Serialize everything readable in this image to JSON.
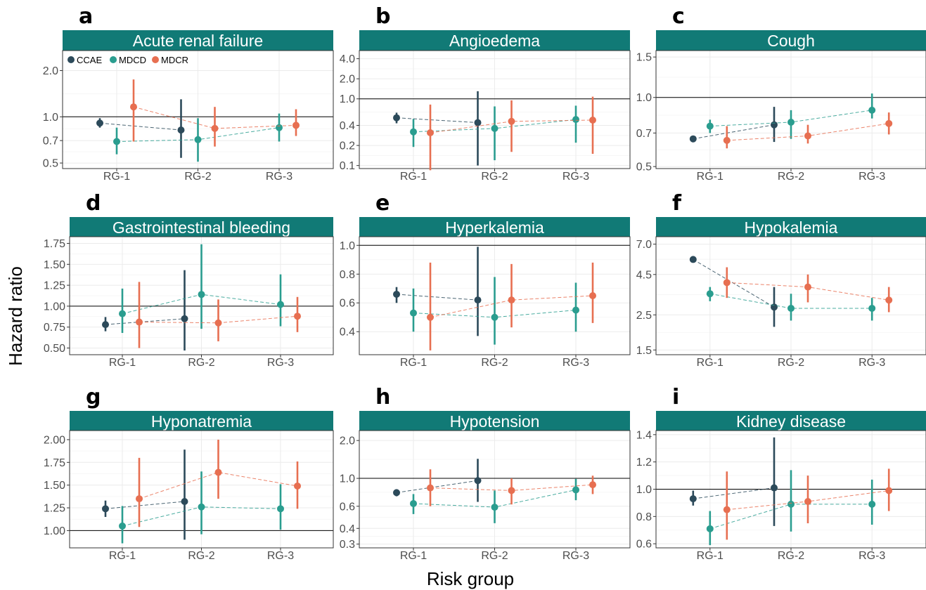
{
  "figure": {
    "y_axis_title": "Hazard ratio",
    "x_axis_title": "Risk group"
  },
  "legend": {
    "entries": [
      {
        "name": "CCAE",
        "color": "#2c4a5a"
      },
      {
        "name": "MDCD",
        "color": "#2a9d8f"
      },
      {
        "name": "MDCR",
        "color": "#e76f51"
      }
    ]
  },
  "colors": {
    "strip": "#117a76",
    "CCAE": "#2c4a5a",
    "MDCD": "#2a9d8f",
    "MDCR": "#e76f51"
  },
  "chart_data": [
    {
      "letter": "a",
      "title": "Acute renal failure",
      "type": "scatter",
      "categories": [
        "RG-1",
        "RG-2",
        "RG-3"
      ],
      "scale": "log",
      "ylim": [
        0.46,
        2.7
      ],
      "yticks": [
        0.5,
        0.7,
        1.0,
        2.0
      ],
      "ytick_labels": [
        "0.5",
        "0.7",
        "1.0",
        "2.0"
      ],
      "refline": 1.0,
      "legend": "top-left",
      "series": [
        {
          "name": "CCAE",
          "points": [
            {
              "cat": 0,
              "est": 0.91,
              "lo": 0.85,
              "hi": 0.98
            },
            {
              "cat": 1,
              "est": 0.82,
              "lo": 0.54,
              "hi": 1.3
            }
          ]
        },
        {
          "name": "MDCD",
          "points": [
            {
              "cat": 0,
              "est": 0.69,
              "lo": 0.57,
              "hi": 0.85
            },
            {
              "cat": 1,
              "est": 0.71,
              "lo": 0.51,
              "hi": 0.98
            },
            {
              "cat": 2,
              "est": 0.85,
              "lo": 0.69,
              "hi": 1.05
            }
          ]
        },
        {
          "name": "MDCR",
          "points": [
            {
              "cat": 0,
              "est": 1.16,
              "lo": 0.69,
              "hi": 1.75
            },
            {
              "cat": 1,
              "est": 0.84,
              "lo": 0.64,
              "hi": 1.16
            },
            {
              "cat": 2,
              "est": 0.88,
              "lo": 0.75,
              "hi": 1.12
            }
          ]
        }
      ]
    },
    {
      "letter": "b",
      "title": "Angioedema",
      "type": "scatter",
      "categories": [
        "RG-1",
        "RG-2",
        "RG-3"
      ],
      "scale": "log",
      "ylim": [
        0.09,
        5.3
      ],
      "yticks": [
        0.1,
        0.2,
        0.4,
        1.0,
        2.0,
        4.0
      ],
      "ytick_labels": [
        "0.1",
        "0.2",
        "0.4",
        "1.0",
        "2.0",
        "4.0"
      ],
      "refline": 1.0,
      "series": [
        {
          "name": "CCAE",
          "points": [
            {
              "cat": 0,
              "est": 0.52,
              "lo": 0.43,
              "hi": 0.62
            },
            {
              "cat": 1,
              "est": 0.44,
              "lo": 0.1,
              "hi": 1.3
            }
          ]
        },
        {
          "name": "MDCD",
          "points": [
            {
              "cat": 0,
              "est": 0.32,
              "lo": 0.19,
              "hi": 0.5
            },
            {
              "cat": 1,
              "est": 0.36,
              "lo": 0.12,
              "hi": 0.77
            },
            {
              "cat": 2,
              "est": 0.49,
              "lo": 0.22,
              "hi": 0.79
            }
          ]
        },
        {
          "name": "MDCR",
          "points": [
            {
              "cat": 0,
              "est": 0.31,
              "lo": 0.085,
              "hi": 0.82
            },
            {
              "cat": 1,
              "est": 0.46,
              "lo": 0.16,
              "hi": 0.95
            },
            {
              "cat": 2,
              "est": 0.48,
              "lo": 0.15,
              "hi": 1.08
            }
          ]
        }
      ]
    },
    {
      "letter": "c",
      "title": "Cough",
      "type": "scatter",
      "categories": [
        "RG-1",
        "RG-2",
        "RG-3"
      ],
      "scale": "log",
      "ylim": [
        0.49,
        1.6
      ],
      "yticks": [
        0.5,
        0.7,
        1.0,
        1.5
      ],
      "ytick_labels": [
        "0.5",
        "0.7",
        "1.0",
        "1.5"
      ],
      "refline": 1.0,
      "series": [
        {
          "name": "CCAE",
          "points": [
            {
              "cat": 0,
              "est": 0.66,
              "lo": 0.64,
              "hi": 0.68
            },
            {
              "cat": 1,
              "est": 0.76,
              "lo": 0.64,
              "hi": 0.91
            }
          ]
        },
        {
          "name": "MDCD",
          "points": [
            {
              "cat": 0,
              "est": 0.75,
              "lo": 0.7,
              "hi": 0.8
            },
            {
              "cat": 1,
              "est": 0.78,
              "lo": 0.66,
              "hi": 0.88
            },
            {
              "cat": 2,
              "est": 0.88,
              "lo": 0.81,
              "hi": 1.04
            }
          ]
        },
        {
          "name": "MDCR",
          "points": [
            {
              "cat": 0,
              "est": 0.65,
              "lo": 0.6,
              "hi": 0.75
            },
            {
              "cat": 1,
              "est": 0.68,
              "lo": 0.63,
              "hi": 0.76
            },
            {
              "cat": 2,
              "est": 0.77,
              "lo": 0.69,
              "hi": 0.86
            }
          ]
        }
      ]
    },
    {
      "letter": "d",
      "title": "Gastrointestinal bleeding",
      "type": "scatter",
      "categories": [
        "RG-1",
        "RG-2",
        "RG-3"
      ],
      "scale": "linear",
      "ylim": [
        0.42,
        1.83
      ],
      "yticks": [
        0.5,
        0.75,
        1.0,
        1.25,
        1.5,
        1.75
      ],
      "ytick_labels": [
        "0.50",
        "0.75",
        "1.00",
        "1.25",
        "1.50",
        "1.75"
      ],
      "refline": 1.0,
      "series": [
        {
          "name": "CCAE",
          "points": [
            {
              "cat": 0,
              "est": 0.78,
              "lo": 0.7,
              "hi": 0.87
            },
            {
              "cat": 1,
              "est": 0.85,
              "lo": 0.47,
              "hi": 1.43
            }
          ]
        },
        {
          "name": "MDCD",
          "points": [
            {
              "cat": 0,
              "est": 0.91,
              "lo": 0.68,
              "hi": 1.21
            },
            {
              "cat": 1,
              "est": 1.14,
              "lo": 0.73,
              "hi": 1.74
            },
            {
              "cat": 2,
              "est": 1.02,
              "lo": 0.76,
              "hi": 1.38
            }
          ]
        },
        {
          "name": "MDCR",
          "points": [
            {
              "cat": 0,
              "est": 0.81,
              "lo": 0.5,
              "hi": 1.29
            },
            {
              "cat": 1,
              "est": 0.8,
              "lo": 0.58,
              "hi": 1.08
            },
            {
              "cat": 2,
              "est": 0.88,
              "lo": 0.69,
              "hi": 1.11
            }
          ]
        }
      ]
    },
    {
      "letter": "e",
      "title": "Hyperkalemia",
      "type": "scatter",
      "categories": [
        "RG-1",
        "RG-2",
        "RG-3"
      ],
      "scale": "linear",
      "ylim": [
        0.24,
        1.06
      ],
      "yticks": [
        0.4,
        0.6,
        0.8,
        1.0
      ],
      "ytick_labels": [
        "0.4",
        "0.6",
        "0.8",
        "1.0"
      ],
      "refline": 1.0,
      "series": [
        {
          "name": "CCAE",
          "points": [
            {
              "cat": 0,
              "est": 0.66,
              "lo": 0.6,
              "hi": 0.71
            },
            {
              "cat": 1,
              "est": 0.62,
              "lo": 0.37,
              "hi": 0.99
            }
          ]
        },
        {
          "name": "MDCD",
          "points": [
            {
              "cat": 0,
              "est": 0.53,
              "lo": 0.4,
              "hi": 0.7
            },
            {
              "cat": 1,
              "est": 0.5,
              "lo": 0.31,
              "hi": 0.78
            },
            {
              "cat": 2,
              "est": 0.55,
              "lo": 0.4,
              "hi": 0.74
            }
          ]
        },
        {
          "name": "MDCR",
          "points": [
            {
              "cat": 0,
              "est": 0.5,
              "lo": 0.27,
              "hi": 0.88
            },
            {
              "cat": 1,
              "est": 0.62,
              "lo": 0.43,
              "hi": 0.87
            },
            {
              "cat": 2,
              "est": 0.65,
              "lo": 0.46,
              "hi": 0.88
            }
          ]
        }
      ]
    },
    {
      "letter": "f",
      "title": "Hypokalemia",
      "type": "scatter",
      "categories": [
        "RG-1",
        "RG-2",
        "RG-3"
      ],
      "scale": "log",
      "ylim": [
        1.4,
        7.8
      ],
      "yticks": [
        1.5,
        2.5,
        4.5,
        7.0
      ],
      "ytick_labels": [
        "1.5",
        "2.5",
        "4.5",
        "7.0"
      ],
      "refline": null,
      "series": [
        {
          "name": "CCAE",
          "points": [
            {
              "cat": 0,
              "est": 5.6,
              "lo": 5.4,
              "hi": 5.8
            },
            {
              "cat": 1,
              "est": 2.8,
              "lo": 2.1,
              "hi": 3.75
            }
          ]
        },
        {
          "name": "MDCD",
          "points": [
            {
              "cat": 0,
              "est": 3.4,
              "lo": 3.05,
              "hi": 3.75
            },
            {
              "cat": 1,
              "est": 2.75,
              "lo": 2.3,
              "hi": 3.4
            },
            {
              "cat": 2,
              "est": 2.75,
              "lo": 2.3,
              "hi": 3.2
            }
          ]
        },
        {
          "name": "MDCR",
          "points": [
            {
              "cat": 0,
              "est": 4.0,
              "lo": 3.2,
              "hi": 5.0
            },
            {
              "cat": 1,
              "est": 3.75,
              "lo": 3.0,
              "hi": 4.5
            },
            {
              "cat": 2,
              "est": 3.1,
              "lo": 2.6,
              "hi": 3.75
            }
          ]
        }
      ]
    },
    {
      "letter": "g",
      "title": "Hyponatremia",
      "type": "scatter",
      "categories": [
        "RG-1",
        "RG-2",
        "RG-3"
      ],
      "scale": "linear",
      "ylim": [
        0.81,
        2.1
      ],
      "yticks": [
        1.0,
        1.25,
        1.5,
        1.75,
        2.0
      ],
      "ytick_labels": [
        "1.00",
        "1.25",
        "1.50",
        "1.75",
        "2.00"
      ],
      "refline": 1.0,
      "series": [
        {
          "name": "CCAE",
          "points": [
            {
              "cat": 0,
              "est": 1.24,
              "lo": 1.15,
              "hi": 1.33
            },
            {
              "cat": 1,
              "est": 1.32,
              "lo": 0.9,
              "hi": 1.89
            }
          ]
        },
        {
          "name": "MDCD",
          "points": [
            {
              "cat": 0,
              "est": 1.05,
              "lo": 0.86,
              "hi": 1.27
            },
            {
              "cat": 1,
              "est": 1.26,
              "lo": 0.96,
              "hi": 1.65
            },
            {
              "cat": 2,
              "est": 1.24,
              "lo": 1.01,
              "hi": 1.51
            }
          ]
        },
        {
          "name": "MDCR",
          "points": [
            {
              "cat": 0,
              "est": 1.35,
              "lo": 1.04,
              "hi": 1.8
            },
            {
              "cat": 1,
              "est": 1.64,
              "lo": 1.35,
              "hi": 2.0
            },
            {
              "cat": 2,
              "est": 1.49,
              "lo": 1.24,
              "hi": 1.76
            }
          ]
        }
      ]
    },
    {
      "letter": "h",
      "title": "Hypotension",
      "type": "scatter",
      "categories": [
        "RG-1",
        "RG-2",
        "RG-3"
      ],
      "scale": "log",
      "ylim": [
        0.28,
        2.4
      ],
      "yticks": [
        0.3,
        0.4,
        0.6,
        1.0,
        2.0
      ],
      "ytick_labels": [
        "0.3",
        "0.4",
        "0.6",
        "1.0",
        "2.0"
      ],
      "refline": 1.0,
      "series": [
        {
          "name": "CCAE",
          "points": [
            {
              "cat": 0,
              "est": 0.77,
              "lo": 0.72,
              "hi": 0.82
            },
            {
              "cat": 1,
              "est": 0.96,
              "lo": 0.65,
              "hi": 1.43
            }
          ]
        },
        {
          "name": "MDCD",
          "points": [
            {
              "cat": 0,
              "est": 0.63,
              "lo": 0.52,
              "hi": 0.75
            },
            {
              "cat": 1,
              "est": 0.59,
              "lo": 0.44,
              "hi": 0.8
            },
            {
              "cat": 2,
              "est": 0.81,
              "lo": 0.67,
              "hi": 0.99
            }
          ]
        },
        {
          "name": "MDCR",
          "points": [
            {
              "cat": 0,
              "est": 0.84,
              "lo": 0.6,
              "hi": 1.18
            },
            {
              "cat": 1,
              "est": 0.8,
              "lo": 0.62,
              "hi": 1.0
            },
            {
              "cat": 2,
              "est": 0.89,
              "lo": 0.75,
              "hi": 1.05
            }
          ]
        }
      ]
    },
    {
      "letter": "i",
      "title": "Kidney disease",
      "type": "scatter",
      "categories": [
        "RG-1",
        "RG-2",
        "RG-3"
      ],
      "scale": "linear",
      "ylim": [
        0.57,
        1.43
      ],
      "yticks": [
        0.6,
        0.8,
        1.0,
        1.2,
        1.4
      ],
      "ytick_labels": [
        "0.6",
        "0.8",
        "1.0",
        "1.2",
        "1.4"
      ],
      "refline": 1.0,
      "series": [
        {
          "name": "CCAE",
          "points": [
            {
              "cat": 0,
              "est": 0.93,
              "lo": 0.88,
              "hi": 0.99
            },
            {
              "cat": 1,
              "est": 1.01,
              "lo": 0.73,
              "hi": 1.38
            }
          ]
        },
        {
          "name": "MDCD",
          "points": [
            {
              "cat": 0,
              "est": 0.71,
              "lo": 0.59,
              "hi": 0.84
            },
            {
              "cat": 1,
              "est": 0.89,
              "lo": 0.69,
              "hi": 1.14
            },
            {
              "cat": 2,
              "est": 0.89,
              "lo": 0.74,
              "hi": 1.07
            }
          ]
        },
        {
          "name": "MDCR",
          "points": [
            {
              "cat": 0,
              "est": 0.85,
              "lo": 0.63,
              "hi": 1.13
            },
            {
              "cat": 1,
              "est": 0.91,
              "lo": 0.75,
              "hi": 1.1
            },
            {
              "cat": 2,
              "est": 0.99,
              "lo": 0.84,
              "hi": 1.15
            }
          ]
        }
      ]
    }
  ]
}
